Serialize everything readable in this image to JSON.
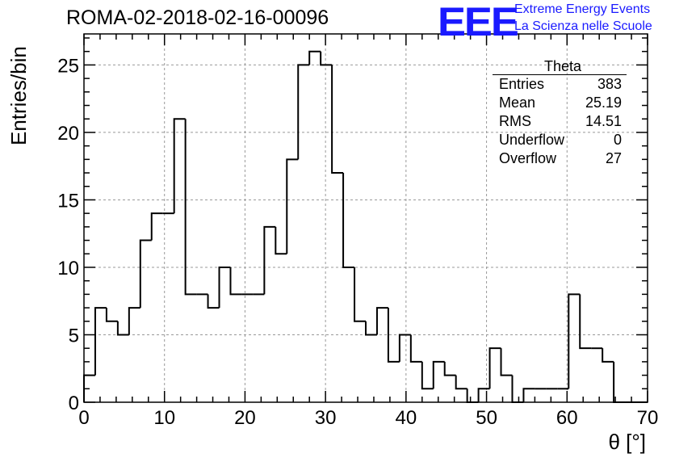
{
  "title": "ROMA-02-2018-02-16-00096",
  "logo": {
    "mark": "EEE",
    "line1": "Extreme Energy Events",
    "line2": "La Scienza nelle Scuole",
    "color": "#1a1aff"
  },
  "stats_box": {
    "name": "Theta",
    "rows": [
      {
        "label": "Entries",
        "value": "383"
      },
      {
        "label": "Mean",
        "value": "25.19"
      },
      {
        "label": "RMS",
        "value": "14.51"
      },
      {
        "label": "Underflow",
        "value": "0"
      },
      {
        "label": "Overflow",
        "value": "27"
      }
    ]
  },
  "chart_data": {
    "type": "histogram",
    "title": "ROMA-02-2018-02-16-00096",
    "xlabel": "θ [°]",
    "ylabel": "Entries/bin",
    "xlim": [
      0,
      70
    ],
    "ylim": [
      0,
      27.3
    ],
    "bin_width": 1.4,
    "bin_edges_start": 0,
    "xticks": [
      0,
      10,
      20,
      30,
      40,
      50,
      60,
      70
    ],
    "yticks": [
      0,
      5,
      10,
      15,
      20,
      25
    ],
    "grid": true,
    "values": [
      2,
      7,
      6,
      5,
      7,
      12,
      14,
      14,
      21,
      8,
      8,
      7,
      10,
      8,
      8,
      8,
      13,
      11,
      18,
      25,
      26,
      25,
      17,
      10,
      6,
      5,
      7,
      3,
      5,
      3,
      1,
      3,
      2,
      1,
      0,
      1,
      4,
      2,
      0,
      1,
      1,
      1,
      1,
      8,
      4,
      4,
      3,
      0,
      0,
      0
    ]
  }
}
